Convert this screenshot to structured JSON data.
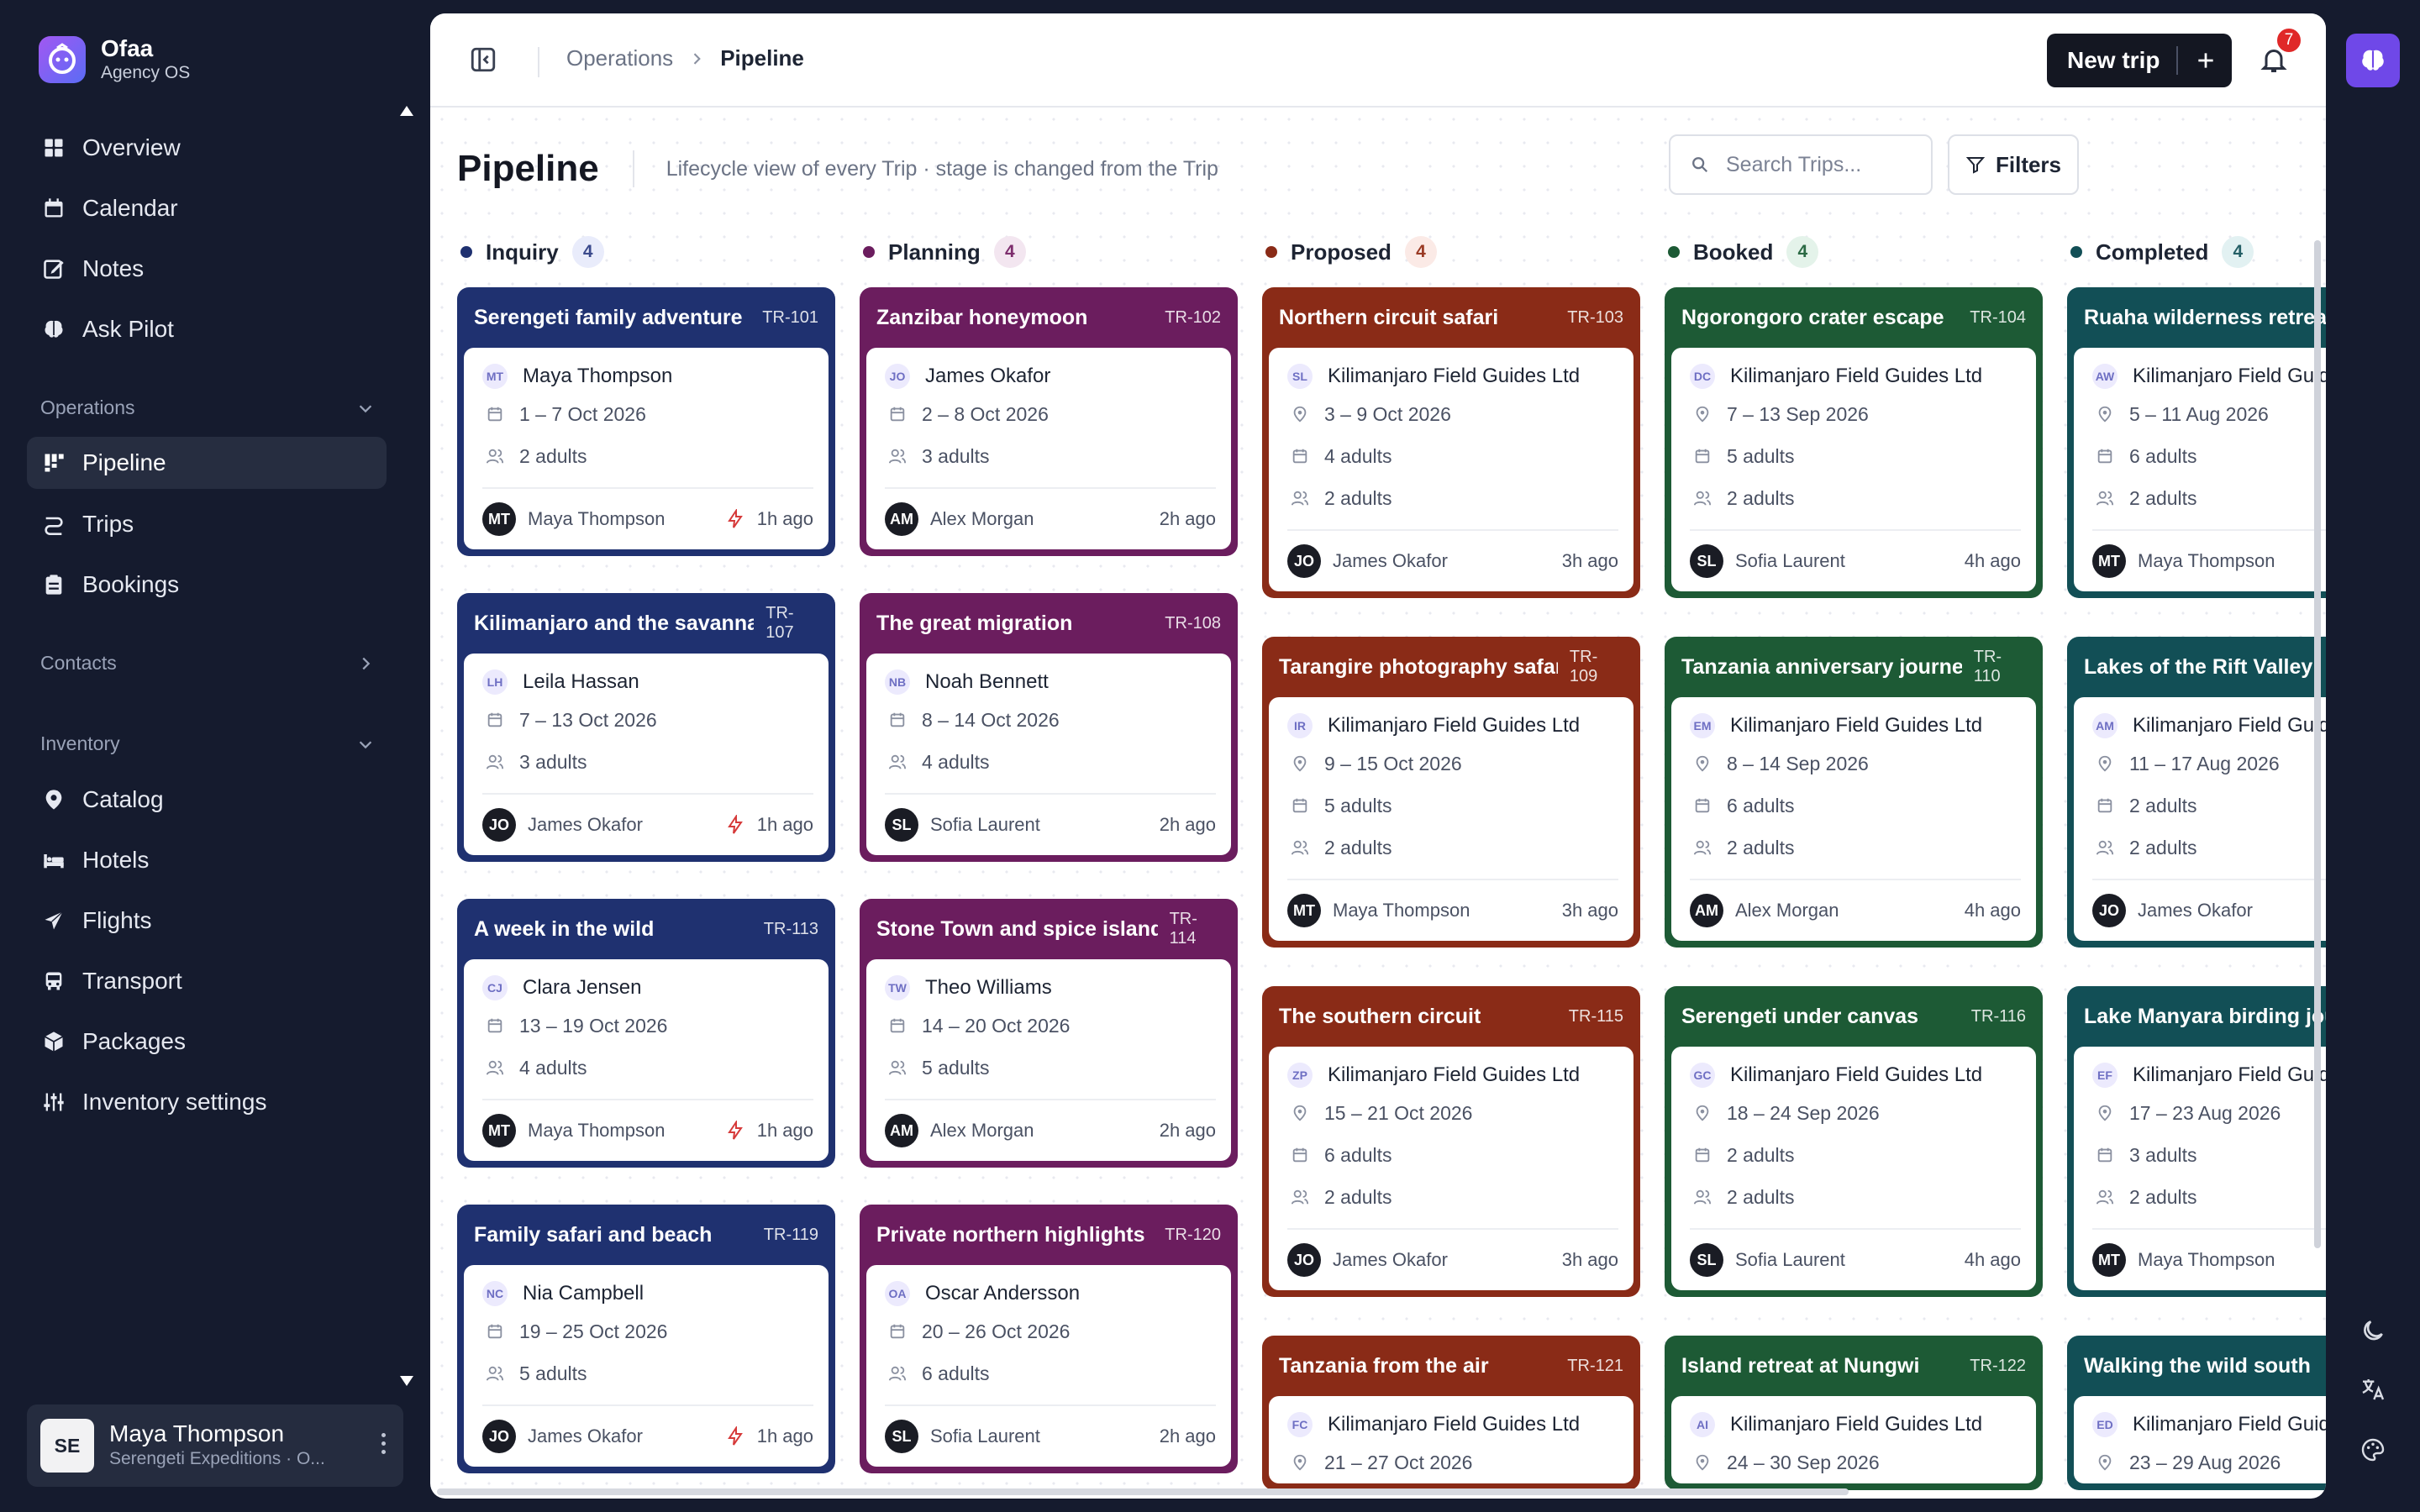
{
  "brand": {
    "name": "Ofaa",
    "subtitle": "Agency OS"
  },
  "nav": {
    "overview": "Overview",
    "calendar": "Calendar",
    "notes": "Notes",
    "ask_pilot": "Ask Pilot",
    "operations": "Operations",
    "pipeline": "Pipeline",
    "trips": "Trips",
    "bookings": "Bookings",
    "contacts": "Contacts",
    "inventory": "Inventory",
    "catalog": "Catalog",
    "hotels": "Hotels",
    "flights": "Flights",
    "transport": "Transport",
    "packages": "Packages",
    "inventory_settings": "Inventory settings"
  },
  "user": {
    "initials": "SE",
    "name": "Maya Thompson",
    "org": "Serengeti Expeditions · O..."
  },
  "breadcrumb": {
    "parent": "Operations",
    "current": "Pipeline"
  },
  "toolbar": {
    "new_trip": "New trip",
    "notifications": "7"
  },
  "page": {
    "title": "Pipeline",
    "subtitle": "Lifecycle view of every Trip · stage is changed from the Trip"
  },
  "search": {
    "placeholder": "Search Trips..."
  },
  "filters_label": "Filters",
  "colors": {
    "inquiry": "#1f3170",
    "planning": "#6b1d5e",
    "proposed": "#8a2b17",
    "booked": "#1d5a35",
    "completed": "#124f56",
    "accent": "#6f48e8"
  },
  "columns": [
    {
      "name": "Inquiry",
      "count": "4",
      "color": "#1f3170",
      "badge": "#e9ecfb",
      "badge_text": "#3b4a8c",
      "cards": [
        {
          "title": "Serengeti family adventure",
          "code": "TR-101",
          "initials": "MT",
          "contact": "Maya Thompson",
          "dates": "1 – 7 Oct 2026",
          "travellers": "2 adults",
          "owner_initials": "MT",
          "owner": "Maya Thompson",
          "ago": "1h ago",
          "flag": true
        },
        {
          "title": "Kilimanjaro and the savannah",
          "code": "TR-107",
          "initials": "LH",
          "contact": "Leila Hassan",
          "dates": "7 – 13 Oct 2026",
          "travellers": "3 adults",
          "owner_initials": "JO",
          "owner": "James Okafor",
          "ago": "1h ago",
          "flag": true
        },
        {
          "title": "A week in the wild",
          "code": "TR-113",
          "initials": "CJ",
          "contact": "Clara Jensen",
          "dates": "13 – 19 Oct 2026",
          "travellers": "4 adults",
          "owner_initials": "MT",
          "owner": "Maya Thompson",
          "ago": "1h ago",
          "flag": true
        },
        {
          "title": "Family safari and beach",
          "code": "TR-119",
          "initials": "NC",
          "contact": "Nia Campbell",
          "dates": "19 – 25 Oct 2026",
          "travellers": "5 adults",
          "owner_initials": "JO",
          "owner": "James Okafor",
          "ago": "1h ago",
          "flag": true
        }
      ]
    },
    {
      "name": "Planning",
      "count": "4",
      "color": "#6b1d5e",
      "badge": "#f3e6f0",
      "badge_text": "#7d2d6d",
      "cards": [
        {
          "title": "Zanzibar honeymoon",
          "code": "TR-102",
          "initials": "JO",
          "contact": "James Okafor",
          "dates": "2 – 8 Oct 2026",
          "travellers": "3 adults",
          "owner_initials": "AM",
          "owner": "Alex Morgan",
          "ago": "2h ago",
          "flag": false
        },
        {
          "title": "The great migration",
          "code": "TR-108",
          "initials": "NB",
          "contact": "Noah Bennett",
          "dates": "8 – 14 Oct 2026",
          "travellers": "4 adults",
          "owner_initials": "SL",
          "owner": "Sofia Laurent",
          "ago": "2h ago",
          "flag": false
        },
        {
          "title": "Stone Town and spice islands",
          "code": "TR-114",
          "initials": "TW",
          "contact": "Theo Williams",
          "dates": "14 – 20 Oct 2026",
          "travellers": "5 adults",
          "owner_initials": "AM",
          "owner": "Alex Morgan",
          "ago": "2h ago",
          "flag": false
        },
        {
          "title": "Private northern highlights",
          "code": "TR-120",
          "initials": "OA",
          "contact": "Oscar Andersson",
          "dates": "20 – 26 Oct 2026",
          "travellers": "6 adults",
          "owner_initials": "SL",
          "owner": "Sofia Laurent",
          "ago": "2h ago",
          "flag": false
        }
      ]
    },
    {
      "name": "Proposed",
      "count": "4",
      "color": "#8a2b17",
      "badge": "#fbeae6",
      "badge_text": "#9a3a24",
      "cards": [
        {
          "title": "Northern circuit safari",
          "code": "TR-103",
          "initials": "SL",
          "contact": "Kilimanjaro Field Guides Ltd",
          "dates": "3 – 9 Oct 2026",
          "groups": "4 adults",
          "travellers": "2 adults",
          "owner_initials": "JO",
          "owner": "James Okafor",
          "ago": "3h ago"
        },
        {
          "title": "Tarangire photography safari",
          "code": "TR-109",
          "initials": "IR",
          "contact": "Kilimanjaro Field Guides Ltd",
          "dates": "9 – 15 Oct 2026",
          "groups": "5 adults",
          "travellers": "2 adults",
          "owner_initials": "MT",
          "owner": "Maya Thompson",
          "ago": "3h ago"
        },
        {
          "title": "The southern circuit",
          "code": "TR-115",
          "initials": "ZP",
          "contact": "Kilimanjaro Field Guides Ltd",
          "dates": "15 – 21 Oct 2026",
          "groups": "6 adults",
          "travellers": "2 adults",
          "owner_initials": "JO",
          "owner": "James Okafor",
          "ago": "3h ago"
        },
        {
          "title": "Tanzania from the air",
          "code": "TR-121",
          "initials": "FC",
          "contact": "Kilimanjaro Field Guides Ltd",
          "dates": "21 – 27 Oct 2026",
          "groups": "",
          "travellers": "",
          "owner_initials": "",
          "owner": "",
          "ago": ""
        }
      ]
    },
    {
      "name": "Booked",
      "count": "4",
      "color": "#1d5a35",
      "badge": "#e4f3ea",
      "badge_text": "#2b6a44",
      "cards": [
        {
          "title": "Ngorongoro crater escape",
          "code": "TR-104",
          "initials": "DC",
          "contact": "Kilimanjaro Field Guides Ltd",
          "dates": "7 – 13 Sep 2026",
          "groups": "5 adults",
          "travellers": "2 adults",
          "owner_initials": "SL",
          "owner": "Sofia Laurent",
          "ago": "4h ago"
        },
        {
          "title": "Tanzania anniversary journey",
          "code": "TR-110",
          "initials": "EM",
          "contact": "Kilimanjaro Field Guides Ltd",
          "dates": "8 – 14 Sep 2026",
          "groups": "6 adults",
          "travellers": "2 adults",
          "owner_initials": "AM",
          "owner": "Alex Morgan",
          "ago": "4h ago"
        },
        {
          "title": "Serengeti under canvas",
          "code": "TR-116",
          "initials": "GC",
          "contact": "Kilimanjaro Field Guides Ltd",
          "dates": "18 – 24 Sep 2026",
          "groups": "2 adults",
          "travellers": "2 adults",
          "owner_initials": "SL",
          "owner": "Sofia Laurent",
          "ago": "4h ago"
        },
        {
          "title": "Island retreat at Nungwi",
          "code": "TR-122",
          "initials": "AI",
          "contact": "Kilimanjaro Field Guides Ltd",
          "dates": "24 – 30 Sep 2026",
          "groups": "",
          "travellers": "",
          "owner_initials": "",
          "owner": "",
          "ago": ""
        }
      ]
    },
    {
      "name": "Completed",
      "count": "4",
      "color": "#124f56",
      "badge": "#e2f1f2",
      "badge_text": "#245f66",
      "cards": [
        {
          "title": "Ruaha wilderness retreat",
          "code": "",
          "initials": "AW",
          "contact": "Kilimanjaro Field Guides Ltd",
          "dates": "5 – 11 Aug 2026",
          "groups": "6 adults",
          "travellers": "2 adults",
          "owner_initials": "MT",
          "owner": "Maya Thompson",
          "ago": ""
        },
        {
          "title": "Lakes of the Rift Valley",
          "code": "",
          "initials": "AM",
          "contact": "Kilimanjaro Field Guides Ltd",
          "dates": "11 – 17 Aug 2026",
          "groups": "2 adults",
          "travellers": "2 adults",
          "owner_initials": "JO",
          "owner": "James Okafor",
          "ago": ""
        },
        {
          "title": "Lake Manyara birding journey",
          "code": "",
          "initials": "EF",
          "contact": "Kilimanjaro Field Guides Ltd",
          "dates": "17 – 23 Aug 2026",
          "groups": "3 adults",
          "travellers": "2 adults",
          "owner_initials": "MT",
          "owner": "Maya Thompson",
          "ago": ""
        },
        {
          "title": "Walking the wild south",
          "code": "",
          "initials": "ED",
          "contact": "Kilimanjaro Field Guides Ltd",
          "dates": "23 – 29 Aug 2026",
          "groups": "",
          "travellers": "",
          "owner_initials": "",
          "owner": "",
          "ago": ""
        }
      ]
    }
  ],
  "icons": {
    "calendar": "calendar-icon",
    "travellers": "users-icon",
    "location": "pin-icon",
    "bolt": "bolt-icon"
  }
}
